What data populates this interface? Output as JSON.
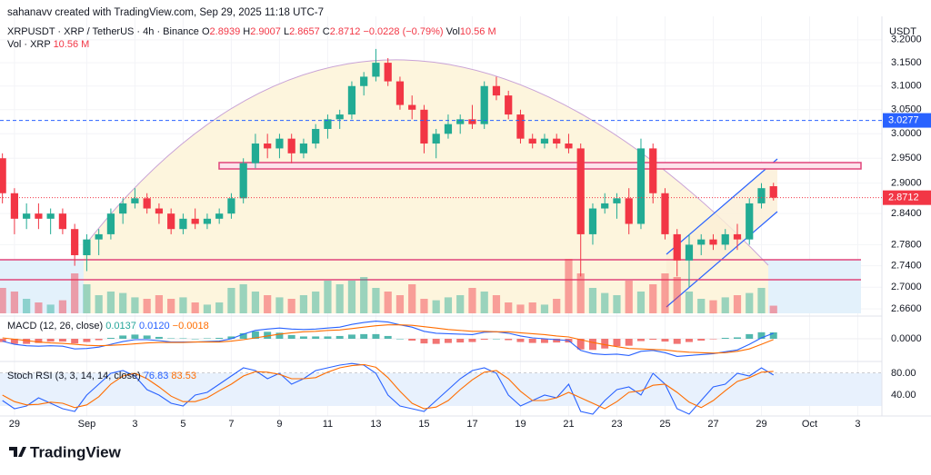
{
  "header": {
    "credit": "sahanavv created with TradingView.com, Sep 29, 2025 11:18 UTC-7",
    "brand": "TradingView"
  },
  "chart_data": [
    {
      "type": "candlestick",
      "title": "XRPUSDT · XRP / TetherUS · 4h · Binance",
      "currency": "USDT",
      "ohlc_labels": [
        "O",
        "H",
        "L",
        "C"
      ],
      "change": "−0.0228 (−0.79%)",
      "vol_label": "Vol",
      "vol_title": "Vol · XRP",
      "vol_value": "10.56 M",
      "up_color": "#22ab94",
      "down_color": "#f23645",
      "log_scale": true,
      "grid": true,
      "alert_line": 3.0277,
      "alert_color": "#2962ff",
      "x": [
        -0.5,
        0,
        0.5,
        1,
        1.5,
        2,
        2.5,
        3,
        3.5,
        4,
        4.5,
        5,
        5.5,
        6,
        6.5,
        7,
        7.5,
        8,
        8.5,
        9,
        9.5,
        10,
        10.5,
        11,
        11.5,
        12,
        12.5,
        13,
        13.5,
        14,
        14.5,
        15,
        15.5,
        16,
        16.5,
        17,
        17.5,
        18,
        18.5,
        19,
        19.5,
        20,
        20.5,
        21,
        21.5,
        22,
        22.5,
        23,
        23.5,
        24,
        24.5,
        25,
        25.5,
        26,
        26.5,
        27,
        27.5,
        28,
        28.5,
        29,
        29.5,
        30,
        30.5,
        31,
        31.5
      ],
      "open": [
        2.95,
        2.88,
        2.83,
        2.84,
        2.83,
        2.84,
        2.81,
        2.76,
        2.79,
        2.8,
        2.84,
        2.86,
        2.87,
        2.85,
        2.84,
        2.81,
        2.83,
        2.82,
        2.83,
        2.84,
        2.87,
        2.94,
        2.98,
        2.97,
        2.99,
        2.96,
        2.98,
        3.01,
        3.03,
        3.04,
        3.1,
        3.12,
        3.15,
        3.11,
        3.06,
        3.05,
        2.98,
        3.0,
        3.02,
        3.03,
        3.02,
        3.1,
        3.08,
        3.04,
        2.99,
        2.98,
        2.99,
        2.98,
        2.97,
        2.8,
        2.85,
        2.86,
        2.87,
        2.82,
        2.97,
        2.88,
        2.8,
        2.75,
        2.78,
        2.79,
        2.78,
        2.8,
        2.79,
        2.86,
        2.8939
      ],
      "high": [
        2.96,
        2.89,
        2.86,
        2.86,
        2.85,
        2.85,
        2.82,
        2.8,
        2.81,
        2.85,
        2.87,
        2.89,
        2.88,
        2.86,
        2.85,
        2.84,
        2.85,
        2.84,
        2.85,
        2.88,
        2.95,
        3.0,
        3.0,
        3.0,
        3.0,
        2.99,
        3.02,
        3.04,
        3.05,
        3.11,
        3.13,
        3.18,
        3.16,
        3.12,
        3.08,
        3.06,
        3.01,
        3.04,
        3.04,
        3.06,
        3.11,
        3.12,
        3.09,
        3.05,
        3.0,
        3.0,
        3.0,
        3.0,
        2.98,
        2.86,
        2.88,
        2.88,
        2.89,
        2.99,
        2.98,
        2.89,
        2.81,
        2.8,
        2.8,
        2.8,
        2.81,
        2.82,
        2.87,
        2.9,
        2.9007
      ],
      "low": [
        2.86,
        2.8,
        2.81,
        2.81,
        2.8,
        2.8,
        2.74,
        2.73,
        2.76,
        2.79,
        2.82,
        2.85,
        2.84,
        2.82,
        2.8,
        2.8,
        2.81,
        2.81,
        2.82,
        2.83,
        2.86,
        2.93,
        2.95,
        2.95,
        2.94,
        2.95,
        2.97,
        2.99,
        3.01,
        3.03,
        3.08,
        3.11,
        3.1,
        3.05,
        3.03,
        2.96,
        2.95,
        2.99,
        3.0,
        3.01,
        3.01,
        3.07,
        3.03,
        2.98,
        2.97,
        2.97,
        2.97,
        2.96,
        2.72,
        2.78,
        2.84,
        2.83,
        2.8,
        2.81,
        2.86,
        2.79,
        2.72,
        2.7,
        2.76,
        2.77,
        2.77,
        2.77,
        2.78,
        2.85,
        2.8657
      ],
      "close": [
        2.88,
        2.83,
        2.84,
        2.83,
        2.84,
        2.81,
        2.76,
        2.79,
        2.8,
        2.84,
        2.86,
        2.87,
        2.85,
        2.84,
        2.81,
        2.83,
        2.82,
        2.83,
        2.84,
        2.87,
        2.94,
        2.98,
        2.97,
        2.99,
        2.96,
        2.98,
        3.01,
        3.03,
        3.04,
        3.1,
        3.12,
        3.15,
        3.11,
        3.06,
        3.05,
        2.98,
        3.0,
        3.02,
        3.03,
        3.02,
        3.1,
        3.08,
        3.04,
        2.99,
        2.98,
        2.99,
        2.98,
        2.97,
        2.8,
        2.85,
        2.86,
        2.87,
        2.82,
        2.97,
        2.88,
        2.8,
        2.75,
        2.78,
        2.79,
        2.78,
        2.8,
        2.79,
        2.86,
        2.89,
        2.8712
      ],
      "volume": [
        35,
        30,
        20,
        15,
        12,
        18,
        55,
        40,
        25,
        30,
        28,
        22,
        20,
        25,
        20,
        22,
        15,
        12,
        15,
        35,
        40,
        30,
        25,
        22,
        20,
        25,
        30,
        45,
        40,
        45,
        50,
        35,
        30,
        25,
        40,
        20,
        18,
        22,
        25,
        35,
        30,
        25,
        15,
        12,
        15,
        12,
        20,
        75,
        55,
        35,
        28,
        25,
        45,
        30,
        40,
        55,
        50,
        30,
        20,
        18,
        22,
        25,
        28,
        35,
        10.56
      ],
      "xlim": [
        -0.6,
        36
      ],
      "xticks": [
        {
          "value": 0,
          "label": "29"
        },
        {
          "value": 3,
          "label": "Sep"
        },
        {
          "value": 5,
          "label": "3"
        },
        {
          "value": 7,
          "label": "5"
        },
        {
          "value": 9,
          "label": "7"
        },
        {
          "value": 11,
          "label": "9"
        },
        {
          "value": 13,
          "label": "11"
        },
        {
          "value": 15,
          "label": "13"
        },
        {
          "value": 17,
          "label": "15"
        },
        {
          "value": 19,
          "label": "17"
        },
        {
          "value": 21,
          "label": "19"
        },
        {
          "value": 23,
          "label": "21"
        },
        {
          "value": 25,
          "label": "23"
        },
        {
          "value": 27,
          "label": "25"
        },
        {
          "value": 29,
          "label": "27"
        },
        {
          "value": 31,
          "label": "29"
        },
        {
          "value": 33,
          "label": "Oct"
        },
        {
          "value": 35,
          "label": "3"
        }
      ],
      "ylim": [
        2.647,
        3.252
      ],
      "yticks": [
        {
          "value": 3.2,
          "label": "3.2000"
        },
        {
          "value": 3.15,
          "label": "3.1500"
        },
        {
          "value": 3.1,
          "label": "3.1000"
        },
        {
          "value": 3.05,
          "label": "3.0500"
        },
        {
          "value": 3.0,
          "label": "3.0000"
        },
        {
          "value": 2.95,
          "label": "2.9500"
        },
        {
          "value": 2.9,
          "label": "2.9000"
        },
        {
          "value": 2.84,
          "label": "2.8400"
        },
        {
          "value": 2.78,
          "label": "2.7800"
        },
        {
          "value": 2.74,
          "label": "2.7400"
        },
        {
          "value": 2.7,
          "label": "2.7000"
        },
        {
          "value": 2.66,
          "label": "2.6600"
        }
      ]
    },
    {
      "type": "macd",
      "title": "MACD (12, 26, close)",
      "legend_labels": [
        "0.0137",
        "0.0120",
        "−0.0018"
      ],
      "ylim": [
        -0.045,
        0.045
      ],
      "yticks": [
        {
          "value": 0,
          "label": "0.0000"
        }
      ],
      "pos_color": "#26a69a",
      "neg_color": "#ef5350",
      "series": [
        {
          "name": "Histogram",
          "color": "#26a69a",
          "values": [
            -0.007,
            -0.011,
            -0.011,
            -0.009,
            -0.006,
            -0.006,
            -0.01,
            -0.007,
            -0.003,
            0.002,
            0.007,
            0.009,
            0.007,
            0.004,
            0.001,
            0.001,
            0.0,
            0.001,
            0.002,
            0.005,
            0.012,
            0.016,
            0.015,
            0.013,
            0.008,
            0.005,
            0.005,
            0.005,
            0.006,
            0.009,
            0.01,
            0.01,
            0.006,
            0.0,
            -0.004,
            -0.01,
            -0.011,
            -0.009,
            -0.008,
            -0.007,
            -0.002,
            0.0,
            -0.003,
            -0.007,
            -0.009,
            -0.009,
            -0.008,
            -0.008,
            -0.023,
            -0.024,
            -0.021,
            -0.016,
            -0.015,
            -0.005,
            -0.002,
            -0.006,
            -0.011,
            -0.007,
            -0.004,
            -0.001,
            0.002,
            0.003,
            0.01,
            0.014,
            0.0137
          ]
        },
        {
          "name": "MACD",
          "color": "#2962ff",
          "values": [
            -0.005,
            -0.012,
            -0.015,
            -0.016,
            -0.015,
            -0.016,
            -0.022,
            -0.021,
            -0.018,
            -0.012,
            -0.006,
            -0.002,
            -0.002,
            -0.004,
            -0.007,
            -0.007,
            -0.007,
            -0.006,
            -0.005,
            0.0,
            0.01,
            0.018,
            0.021,
            0.023,
            0.021,
            0.02,
            0.021,
            0.023,
            0.025,
            0.031,
            0.035,
            0.038,
            0.036,
            0.03,
            0.025,
            0.016,
            0.012,
            0.011,
            0.01,
            0.009,
            0.014,
            0.015,
            0.012,
            0.006,
            0.002,
            0.0,
            -0.002,
            -0.004,
            -0.025,
            -0.032,
            -0.034,
            -0.033,
            -0.036,
            -0.027,
            -0.025,
            -0.03,
            -0.038,
            -0.036,
            -0.034,
            -0.032,
            -0.028,
            -0.024,
            -0.012,
            0.002,
            0.012
          ]
        },
        {
          "name": "Signal",
          "color": "#ff6d00",
          "values": [
            0.002,
            -0.001,
            -0.004,
            -0.007,
            -0.009,
            -0.01,
            -0.012,
            -0.014,
            -0.015,
            -0.014,
            -0.013,
            -0.011,
            -0.009,
            -0.008,
            -0.008,
            -0.008,
            -0.007,
            -0.007,
            -0.007,
            -0.005,
            -0.002,
            0.002,
            0.006,
            0.01,
            0.013,
            0.015,
            0.016,
            0.018,
            0.019,
            0.022,
            0.025,
            0.028,
            0.03,
            0.03,
            0.029,
            0.026,
            0.023,
            0.02,
            0.018,
            0.016,
            0.016,
            0.015,
            0.015,
            0.013,
            0.011,
            0.009,
            0.006,
            0.004,
            -0.002,
            -0.008,
            -0.013,
            -0.017,
            -0.021,
            -0.022,
            -0.023,
            -0.024,
            -0.027,
            -0.029,
            -0.03,
            -0.031,
            -0.03,
            -0.027,
            -0.022,
            -0.012,
            -0.0018
          ]
        }
      ]
    },
    {
      "type": "stoch",
      "title": "Stoch RSI (3, 3, 14, 14, close)",
      "ylim": [
        0,
        100
      ],
      "yticks": [
        {
          "value": 80,
          "label": "80.00"
        },
        {
          "value": 40,
          "label": "40.00"
        }
      ],
      "series": [
        {
          "name": "K",
          "color": "#2962ff",
          "values": [
            30,
            15,
            20,
            35,
            25,
            15,
            10,
            40,
            60,
            80,
            85,
            75,
            50,
            40,
            25,
            20,
            40,
            45,
            60,
            75,
            90,
            85,
            70,
            80,
            60,
            70,
            85,
            90,
            95,
            98,
            95,
            80,
            40,
            20,
            15,
            10,
            30,
            50,
            70,
            85,
            90,
            80,
            40,
            20,
            30,
            40,
            35,
            60,
            10,
            5,
            30,
            50,
            55,
            40,
            80,
            60,
            15,
            5,
            30,
            55,
            60,
            80,
            75,
            90,
            76.83
          ]
        },
        {
          "name": "D",
          "color": "#ff6d00",
          "values": [
            40,
            28,
            22,
            23,
            27,
            25,
            17,
            22,
            37,
            60,
            75,
            80,
            70,
            55,
            38,
            28,
            28,
            35,
            48,
            60,
            75,
            83,
            82,
            78,
            70,
            70,
            72,
            82,
            90,
            94,
            96,
            91,
            72,
            47,
            25,
            15,
            18,
            30,
            50,
            68,
            82,
            85,
            70,
            47,
            30,
            30,
            35,
            45,
            35,
            25,
            15,
            28,
            45,
            48,
            58,
            60,
            45,
            27,
            17,
            30,
            48,
            65,
            72,
            82,
            83.53
          ]
        }
      ]
    }
  ]
}
